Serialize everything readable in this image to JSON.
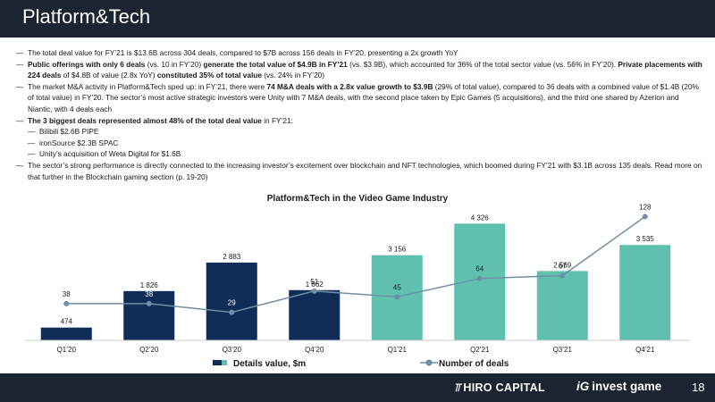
{
  "page": {
    "title": "Platform&Tech",
    "number": "18"
  },
  "bullets": [
    {
      "level": 1,
      "segments": [
        {
          "t": "The total deal value for FY’21 is $13.6B across 304 deals, compared to $7B across 156 deals in FY’20, presenting a 2x growth YoY",
          "b": false
        }
      ]
    },
    {
      "level": 1,
      "segments": [
        {
          "t": "Public offerings with only 6 deals",
          "b": true
        },
        {
          "t": " (vs. 10 in FY’20) ",
          "b": false
        },
        {
          "t": "generate the total value of $4.9B in FY’21",
          "b": true
        },
        {
          "t": " (vs. $3.9B), which accounted for 36% of the total sector value (vs. 56% in FY’20). ",
          "b": false
        },
        {
          "t": "Private placements with 224 deals",
          "b": true
        },
        {
          "t": " of $4.8B of value (2.8x YoY) ",
          "b": false
        },
        {
          "t": "constituted 35% of total value",
          "b": true
        },
        {
          "t": " (vs. 24% in FY’20)",
          "b": false
        }
      ]
    },
    {
      "level": 1,
      "segments": [
        {
          "t": "The market M&A activity in Platform&Tech sped up: in FY’21, there were ",
          "b": false
        },
        {
          "t": "74 M&A deals with a 2.8x value growth to $3.9B",
          "b": true
        },
        {
          "t": " (29% of total value), compared to 36 deals with a combined value of $1.4B (20% of total value) in FY’20. The sector’s most active strategic investors were Unity with 7 M&A deals, with the second place taken by Epic Games (5 acquisitions), and the third one shared by Azerion and Niantic, with 4 deals each",
          "b": false
        }
      ]
    },
    {
      "level": 1,
      "segments": [
        {
          "t": "The 3 biggest deals represented almost 48% of the total deal value",
          "b": true
        },
        {
          "t": " in FY’21:",
          "b": false
        }
      ]
    },
    {
      "level": 2,
      "segments": [
        {
          "t": "Bilibili $2.6B PIPE",
          "b": false
        }
      ]
    },
    {
      "level": 2,
      "segments": [
        {
          "t": "ironSource $2.3B SPAC",
          "b": false
        }
      ]
    },
    {
      "level": 2,
      "segments": [
        {
          "t": "Unity’s acquisition of Weta Digital for $1.6B",
          "b": false
        }
      ]
    },
    {
      "level": 1,
      "segments": [
        {
          "t": "The sector’s strong performance is directly connected to the increasing investor’s excitement over blockchain and NFT technologies, which boomed during FY’21 with $3.1B across 135 deals. Read more on that further in the Blockchain gaming section (p. 19-20)",
          "b": false
        }
      ]
    }
  ],
  "chart_data": {
    "type": "bar+line",
    "title": "Platform&Tech in the Video Game Industry",
    "categories": [
      "Q1’20",
      "Q2’20",
      "Q3’20",
      "Q4’20",
      "Q1’21",
      "Q2’21",
      "Q3’21",
      "Q4’21"
    ],
    "series": [
      {
        "name": "Details value, $m",
        "kind": "bar",
        "values": [
          474,
          1826,
          2883,
          1862,
          3156,
          4326,
          2569,
          3535
        ],
        "labels": [
          "474",
          "1 826",
          "2 883",
          "1 862",
          "3 156",
          "4 326",
          "2 569",
          "3 535"
        ],
        "bar_colors": [
          "#0f2d57",
          "#0f2d57",
          "#0f2d57",
          "#0f2d57",
          "#5fc0b0",
          "#5fc0b0",
          "#5fc0b0",
          "#5fc0b0"
        ]
      },
      {
        "name": "Number of deals",
        "kind": "line",
        "values": [
          38,
          38,
          29,
          51,
          45,
          64,
          67,
          128
        ],
        "color": "#6f8fa6"
      }
    ],
    "ylim_bars": [
      0,
      4800
    ],
    "ylim_line": [
      0,
      134
    ],
    "legend_position": "bottom-center",
    "grid": false
  },
  "footer": {
    "brand_1": "HIRO CAPITAL",
    "brand_1_mark": "⫪",
    "brand_2": "invest game",
    "brand_2_mark": "iG"
  }
}
